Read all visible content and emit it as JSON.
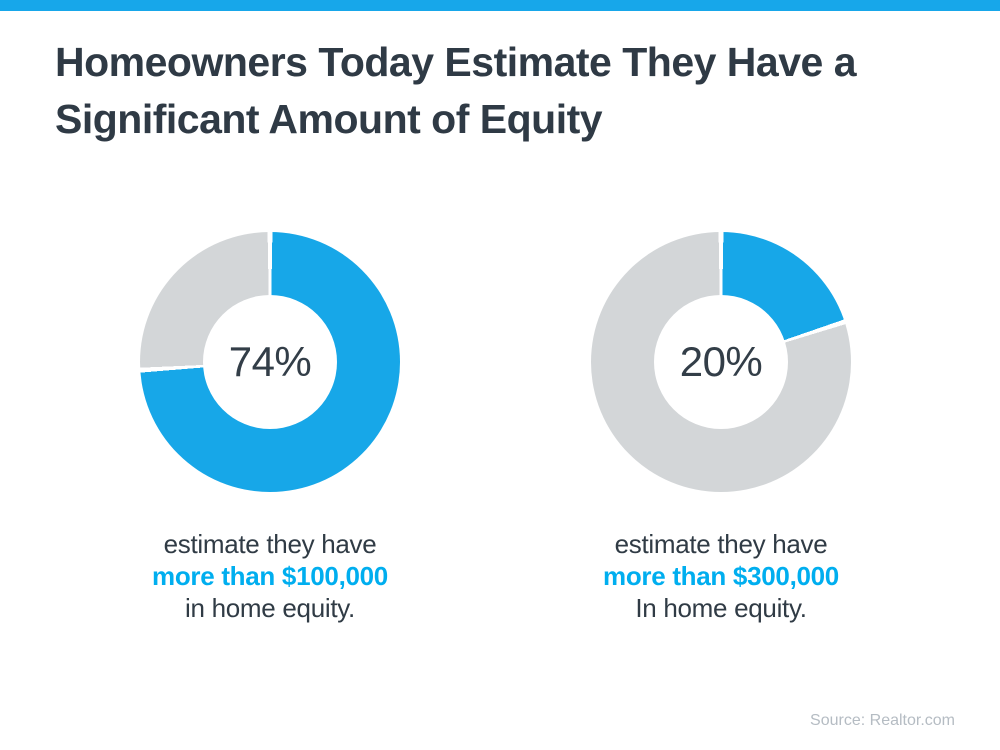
{
  "title": {
    "line1": "Homeowners Today Estimate They Have a",
    "line2": "Significant Amount of Equity"
  },
  "source": "Source: Realtor.com",
  "colors": {
    "accent_bar": "#17A7EA",
    "donut_blue": "#17A7E8",
    "donut_gray": "#D3D6D8",
    "segment_gap": "#FFFFFF",
    "text_dark": "#2F3A45",
    "text_blue": "#00AEEF",
    "source_gray": "#B5BCC3"
  },
  "chart_data": [
    {
      "type": "pie",
      "variant": "donut",
      "title": "",
      "center_label": "74%",
      "start_angle_deg": 0,
      "direction": "clockwise",
      "series": [
        {
          "name": "estimate they have more than $100,000 in home equity",
          "value": 74,
          "color": "#17A7E8"
        },
        {
          "name": "remainder",
          "value": 26,
          "color": "#D3D6D8"
        }
      ],
      "caption": {
        "line1": "estimate they have",
        "line2": "more than $100,000",
        "line3": "in home equity."
      }
    },
    {
      "type": "pie",
      "variant": "donut",
      "title": "",
      "center_label": "20%",
      "start_angle_deg": 0,
      "direction": "clockwise",
      "series": [
        {
          "name": "estimate they have more than $300,000 in home equity",
          "value": 20,
          "color": "#17A7E8"
        },
        {
          "name": "remainder",
          "value": 80,
          "color": "#D3D6D8"
        }
      ],
      "caption": {
        "line1": "estimate they have",
        "line2": "more than $300,000",
        "line3": "In home equity."
      }
    }
  ]
}
